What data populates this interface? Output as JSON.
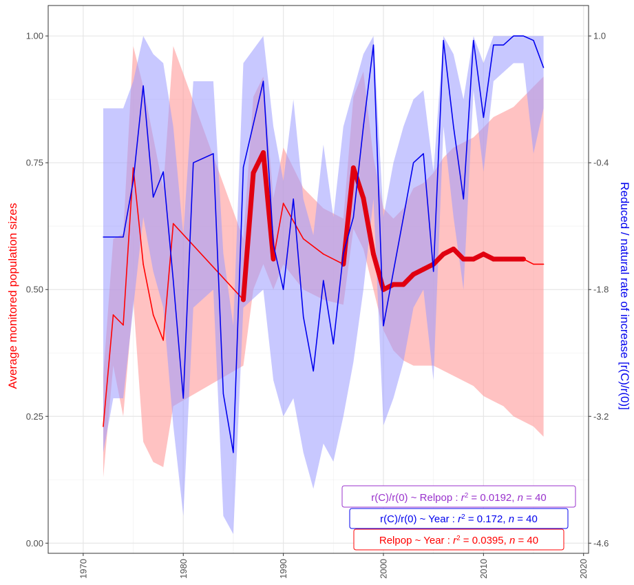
{
  "chart_data": {
    "type": "line",
    "ylabel_left": "Average monitored population sizes",
    "ylabel_right": "Reduced / natural rate of increase [r(C)/r(0)]",
    "xlim": [
      1966.5,
      2020.5
    ],
    "ylim_left": [
      -0.02,
      1.06
    ],
    "ylim_right": [
      -4.6,
      1.0
    ],
    "x_ticks": [
      "1970",
      "1980",
      "1990",
      "2000",
      "2010",
      "2020"
    ],
    "y_left_ticks": [
      "0.00",
      "0.25",
      "0.50",
      "0.75",
      "1.00"
    ],
    "y_right_ticks": [
      "-4.6",
      "-3.2",
      "-1.8",
      "-0.4",
      "1.0"
    ],
    "grid": true,
    "colors": {
      "relpop": "#ff0000",
      "relpop_band": "#ff9a9a",
      "rc": "#0000ee",
      "rc_band": "#9a9aff",
      "relpop_ann": "#ff0000",
      "rc_year_ann": "#0000ee",
      "rc_relpop_ann": "#9932cc"
    },
    "series": [
      {
        "name": "Relpop",
        "axis": "left",
        "x": [
          1972,
          1973,
          1974,
          1975,
          1976,
          1977,
          1978,
          1979,
          1986,
          1987,
          1988,
          1989,
          1990,
          1992,
          1994,
          1996,
          1997,
          1998,
          1999,
          2000,
          2001,
          2002,
          2003,
          2004,
          2005,
          2006,
          2007,
          2008,
          2009,
          2010,
          2011,
          2012,
          2013,
          2014,
          2015,
          2016
        ],
        "values": [
          0.23,
          0.45,
          0.43,
          0.74,
          0.55,
          0.45,
          0.4,
          0.63,
          0.48,
          0.73,
          0.77,
          0.56,
          0.67,
          0.6,
          0.57,
          0.55,
          0.74,
          0.68,
          0.57,
          0.5,
          0.51,
          0.51,
          0.53,
          0.54,
          0.55,
          0.57,
          0.58,
          0.56,
          0.56,
          0.57,
          0.56,
          0.56,
          0.56,
          0.56,
          0.55,
          0.55
        ],
        "lower": [
          0.13,
          0.35,
          0.25,
          0.48,
          0.2,
          0.16,
          0.15,
          0.27,
          0.35,
          0.5,
          0.55,
          0.5,
          0.55,
          0.5,
          0.48,
          0.47,
          0.62,
          0.58,
          0.5,
          0.42,
          0.38,
          0.36,
          0.35,
          0.35,
          0.35,
          0.34,
          0.33,
          0.32,
          0.31,
          0.29,
          0.28,
          0.27,
          0.25,
          0.24,
          0.23,
          0.21
        ],
        "upper": [
          0.33,
          0.6,
          0.61,
          0.98,
          0.9,
          0.8,
          0.7,
          0.98,
          0.6,
          0.88,
          0.92,
          0.68,
          0.78,
          0.7,
          0.66,
          0.64,
          0.88,
          0.93,
          0.76,
          0.66,
          0.64,
          0.66,
          0.7,
          0.71,
          0.73,
          0.76,
          0.78,
          0.79,
          0.8,
          0.82,
          0.84,
          0.85,
          0.86,
          0.88,
          0.9,
          0.92
        ]
      },
      {
        "name": "r(C)/r(0)",
        "axis": "right",
        "x": [
          1972,
          1973,
          1974,
          1975,
          1976,
          1977,
          1978,
          1979,
          1980,
          1981,
          1983,
          1984,
          1985,
          1986,
          1988,
          1989,
          1990,
          1991,
          1992,
          1993,
          1994,
          1995,
          1996,
          1997,
          1998,
          1999,
          2000,
          2001,
          2002,
          2003,
          2004,
          2005,
          2006,
          2007,
          2008,
          2009,
          2010,
          2011,
          2012,
          2013,
          2014,
          2015,
          2016
        ],
        "values": [
          -1.22,
          -1.22,
          -1.22,
          -0.6,
          0.45,
          -0.78,
          -0.5,
          -1.7,
          -3.0,
          -0.4,
          -0.3,
          -2.95,
          -3.6,
          -0.45,
          0.5,
          -1.3,
          -1.8,
          -0.8,
          -2.1,
          -2.7,
          -1.7,
          -2.4,
          -1.4,
          -1.0,
          0.0,
          0.9,
          -2.2,
          -1.6,
          -1.0,
          -0.4,
          -0.3,
          -1.6,
          0.95,
          0.0,
          -0.8,
          0.95,
          0.1,
          0.9,
          0.9,
          1.0,
          1.0,
          0.95,
          0.65
        ],
        "lower": [
          -3.6,
          -3.0,
          -3.0,
          -2.0,
          -1.0,
          -1.6,
          -2.0,
          -3.3,
          -4.3,
          -2.0,
          -1.8,
          -4.3,
          -4.5,
          -2.0,
          -1.8,
          -2.8,
          -3.2,
          -3.0,
          -3.6,
          -4.0,
          -3.5,
          -3.7,
          -3.2,
          -2.6,
          -1.8,
          -0.8,
          -3.3,
          -3.0,
          -2.6,
          -2.0,
          -1.8,
          -2.8,
          0.0,
          -1.0,
          -1.8,
          0.4,
          -0.5,
          0.5,
          0.6,
          0.7,
          0.7,
          -0.3,
          0.2
        ],
        "upper": [
          0.2,
          0.2,
          0.2,
          0.5,
          1.0,
          0.8,
          0.7,
          0.0,
          -1.2,
          0.5,
          0.5,
          -1.4,
          -2.2,
          0.7,
          1.0,
          0.0,
          -0.6,
          0.3,
          -0.8,
          -1.2,
          -0.2,
          -1.0,
          0.0,
          0.4,
          0.8,
          1.0,
          -1.0,
          -0.4,
          0.0,
          0.3,
          0.4,
          -0.5,
          1.0,
          0.8,
          0.3,
          1.0,
          0.7,
          1.0,
          1.0,
          1.0,
          1.0,
          1.0,
          1.0
        ]
      }
    ],
    "annotations": [
      {
        "lhs": "r(C)/r(0) ~ Relpop",
        "r2": "0.0192",
        "n": "40"
      },
      {
        "lhs": "r(C)/r(0) ~ Year",
        "r2": "0.172",
        "n": "40"
      },
      {
        "lhs": "Relpop ~ Year",
        "r2": "0.0395",
        "n": "40"
      }
    ]
  }
}
